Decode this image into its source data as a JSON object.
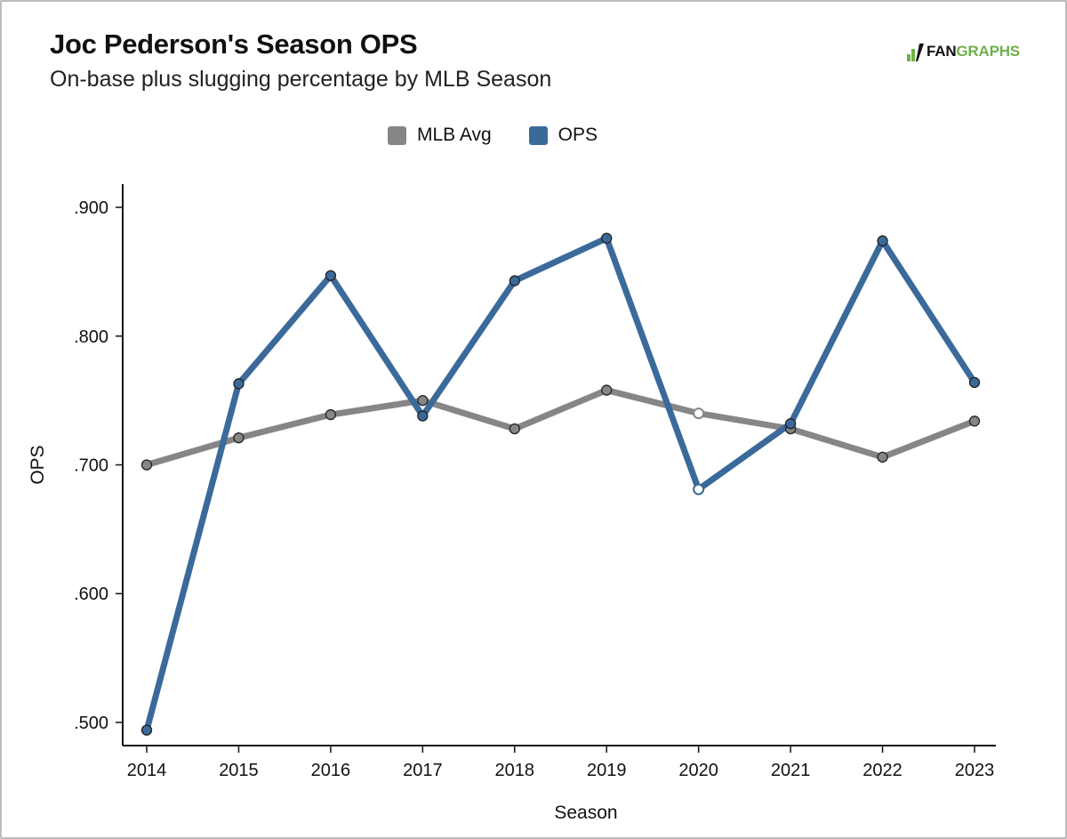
{
  "header": {
    "title": "Joc Pederson's Season OPS",
    "subtitle": "On-base plus slugging percentage by MLB Season"
  },
  "logo": {
    "part1": "FAN",
    "part2": "GRAPHS",
    "color_primary": "#111111",
    "color_accent": "#6fb04b"
  },
  "chart_data": {
    "type": "line",
    "title": "Joc Pederson's Season OPS",
    "subtitle": "On-base plus slugging percentage by MLB Season",
    "xlabel": "Season",
    "ylabel": "OPS",
    "x": [
      "2014",
      "2015",
      "2016",
      "2017",
      "2018",
      "2019",
      "2020",
      "2021",
      "2022",
      "2023"
    ],
    "y_ticks": [
      ".500",
      ".600",
      ".700",
      ".800",
      ".900"
    ],
    "y_tick_values": [
      0.5,
      0.6,
      0.7,
      0.8,
      0.9
    ],
    "ylim": [
      0.482,
      0.918
    ],
    "grid": false,
    "legend_position": "top-center",
    "series": [
      {
        "name": "MLB Avg",
        "color": "#868686",
        "values": [
          0.7,
          0.721,
          0.739,
          0.75,
          0.728,
          0.758,
          0.74,
          0.728,
          0.706,
          0.734
        ],
        "hollow_points": [
          "2020"
        ]
      },
      {
        "name": "OPS",
        "color": "#3b6a9a",
        "values": [
          0.494,
          0.763,
          0.847,
          0.738,
          0.843,
          0.876,
          0.681,
          0.732,
          0.874,
          0.764
        ],
        "hollow_points": [
          "2020"
        ]
      }
    ]
  }
}
